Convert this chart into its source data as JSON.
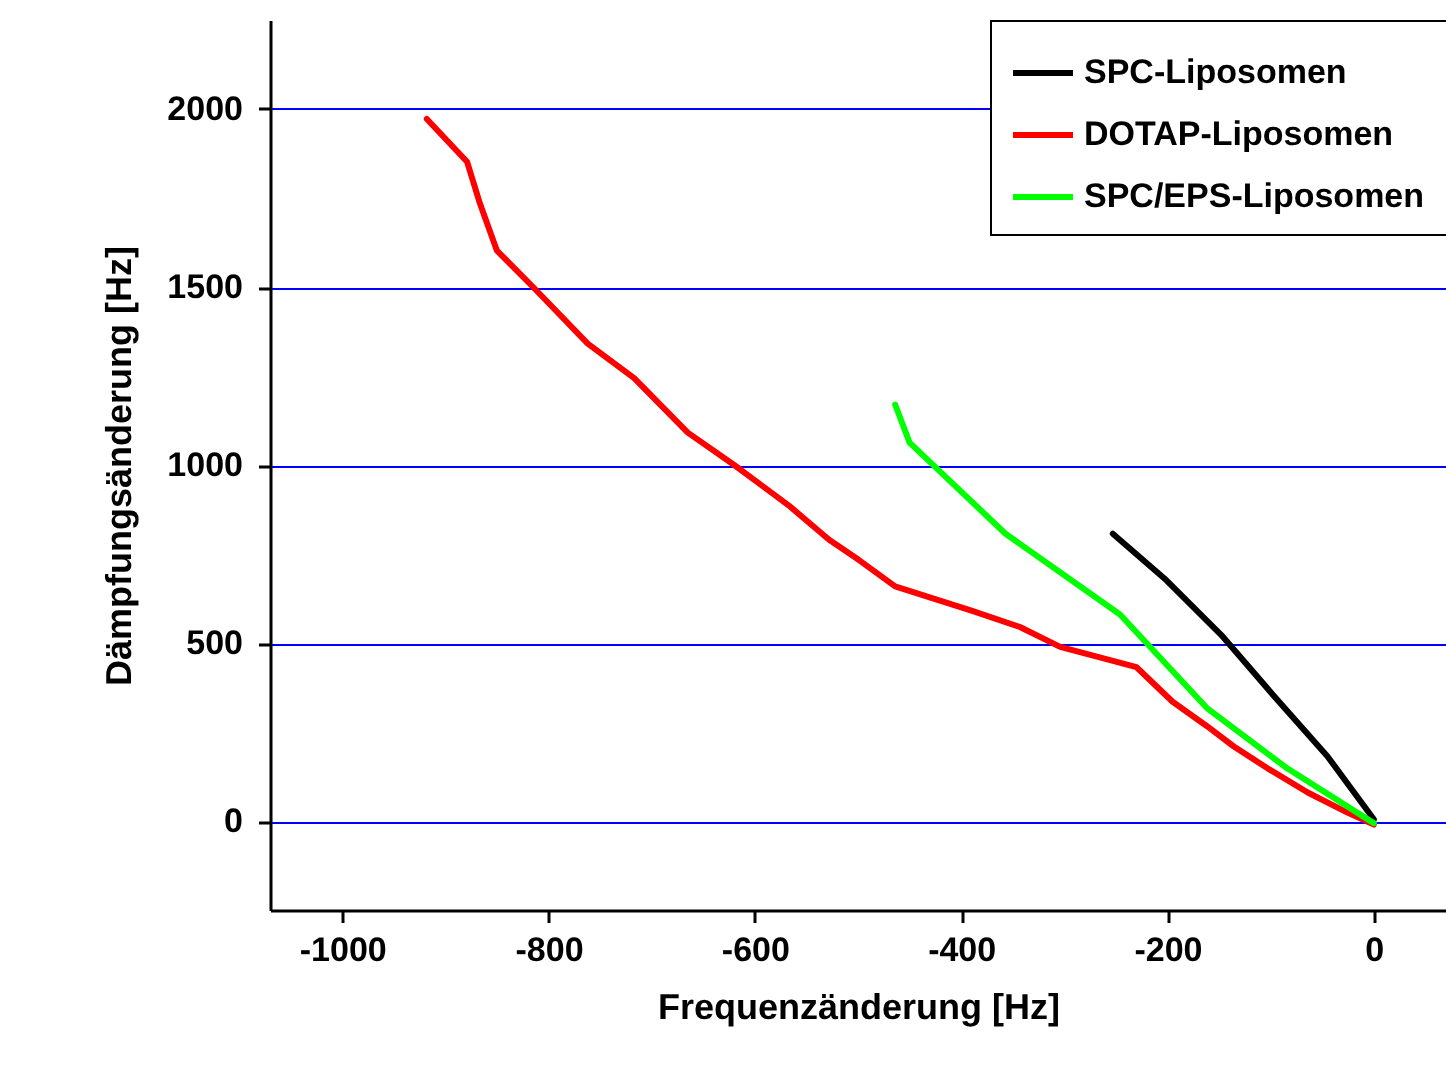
{
  "chart_data": {
    "type": "line",
    "xlabel": "Frequenzänderung [Hz]",
    "ylabel": "Dämpfungsänderung [Hz]",
    "xlim": [
      -1070,
      70
    ],
    "ylim": [
      -250,
      2250
    ],
    "xticks": [
      -1000,
      -800,
      -600,
      -400,
      -200,
      0
    ],
    "yticks": [
      0,
      500,
      1000,
      1500,
      2000
    ],
    "grid": "y",
    "legend": "top right",
    "series": [
      {
        "name": "SPC-Liposomen",
        "color": "#000000",
        "x": [
          -253,
          -201,
          -148,
          -97,
          -45,
          0
        ],
        "values": [
          807,
          676,
          523,
          352,
          182,
          5
        ]
      },
      {
        "name": "DOTAP-Liposomen",
        "color": "#ff0000",
        "x": [
          -918,
          -879,
          -867,
          -850,
          -815,
          -762,
          -717,
          -665,
          -620,
          -567,
          -528,
          -499,
          -464,
          -390,
          -343,
          -304,
          -230,
          -195,
          -162,
          -136,
          -103,
          -64,
          -25,
          0
        ],
        "values": [
          1972,
          1852,
          1739,
          1602,
          1500,
          1341,
          1244,
          1091,
          1000,
          886,
          790,
          733,
          659,
          591,
          545,
          489,
          432,
          335,
          267,
          210,
          148,
          80,
          23,
          -10
        ]
      },
      {
        "name": "SPC/EPS-Liposomen",
        "color": "#00ff00",
        "x": [
          -464,
          -450,
          -357,
          -246,
          -162,
          -84,
          0
        ],
        "values": [
          1170,
          1063,
          807,
          580,
          318,
          148,
          -6
        ]
      }
    ]
  }
}
